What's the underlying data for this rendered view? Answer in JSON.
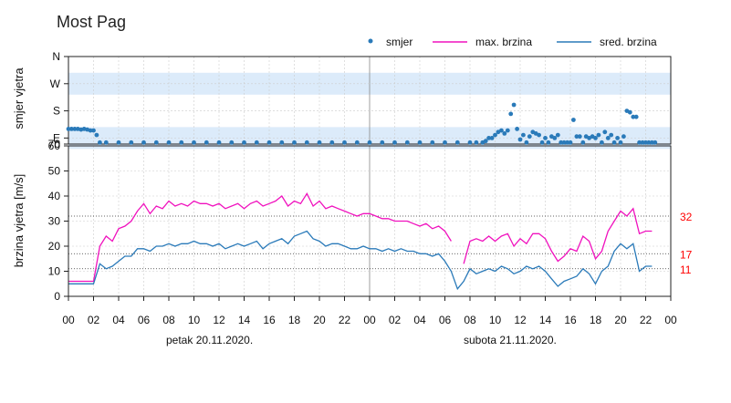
{
  "title": "Most Pag",
  "colors": {
    "direction": "#2a7ab9",
    "max": "#f012be",
    "avg": "#2a7ab9",
    "ref": "#ff0000",
    "band": "#dcebfa"
  },
  "legend": {
    "direction": "smjer",
    "max": "max. brzina",
    "avg": "sred. brzina"
  },
  "top_panel": {
    "ylabel": "smjer vjetra",
    "yticks": [
      "N",
      "W",
      "S",
      "E",
      "70"
    ]
  },
  "bottom_panel": {
    "ylabel": "brzina vjetra [m/s]",
    "yticks": [
      "0",
      "10",
      "20",
      "30",
      "40",
      "50",
      "60"
    ],
    "ref_lines": [
      {
        "value": 32,
        "label": "32"
      },
      {
        "value": 17,
        "label": "17"
      },
      {
        "value": 11,
        "label": "11"
      }
    ]
  },
  "x_axis": {
    "ticks": [
      "00",
      "02",
      "04",
      "06",
      "08",
      "10",
      "12",
      "14",
      "16",
      "18",
      "20",
      "22",
      "00",
      "02",
      "04",
      "06",
      "08",
      "10",
      "12",
      "14",
      "16",
      "18",
      "20",
      "22",
      "00"
    ],
    "days": [
      "petak  20.11.2020.",
      "subota  21.11.2020."
    ]
  },
  "chart_data": [
    {
      "type": "scatter",
      "name": "smjer",
      "ylabel": "smjer vjetra",
      "ytick_labels": [
        "N",
        "W",
        "S",
        "E",
        "70"
      ],
      "note": "wind direction in degrees (E=90, S=180, W=270, N=360, bottom=70)",
      "x": [
        0,
        0.25,
        0.5,
        0.75,
        1,
        1.25,
        1.5,
        1.75,
        2,
        2.25,
        2.5,
        3,
        4,
        5,
        6,
        7,
        8,
        9,
        10,
        11,
        12,
        13,
        14,
        15,
        16,
        17,
        18,
        19,
        20,
        21,
        22,
        23,
        24,
        25,
        26,
        27,
        28,
        29,
        30,
        31,
        32,
        32.5,
        33,
        33.25,
        33.5,
        33.75,
        34,
        34.25,
        34.5,
        34.75,
        35,
        35.25,
        35.5,
        35.75,
        36,
        36.25,
        36.5,
        36.75,
        37,
        37.25,
        37.5,
        37.75,
        38,
        38.25,
        38.5,
        38.75,
        39,
        39.25,
        39.5,
        39.75,
        40,
        40.25,
        40.5,
        40.75,
        41,
        41.25,
        41.5,
        41.75,
        42,
        42.25,
        42.5,
        42.75,
        43,
        43.25,
        43.5,
        43.75,
        44,
        44.25,
        44.5,
        44.75,
        45,
        45.25,
        45.5,
        45.75,
        46,
        46.25,
        46.5,
        46.75
      ],
      "y": [
        120,
        120,
        120,
        120,
        118,
        120,
        118,
        115,
        115,
        100,
        75,
        75,
        75,
        75,
        75,
        75,
        75,
        75,
        75,
        75,
        75,
        75,
        75,
        75,
        75,
        75,
        75,
        75,
        75,
        75,
        75,
        75,
        75,
        75,
        75,
        75,
        75,
        75,
        75,
        75,
        75,
        75,
        75,
        80,
        90,
        90,
        100,
        110,
        115,
        105,
        115,
        170,
        200,
        120,
        85,
        100,
        75,
        95,
        110,
        105,
        100,
        75,
        90,
        75,
        95,
        90,
        100,
        75,
        75,
        75,
        75,
        150,
        95,
        95,
        75,
        95,
        90,
        95,
        90,
        100,
        75,
        110,
        90,
        100,
        75,
        90,
        75,
        95,
        180,
        175,
        160,
        160,
        75,
        75,
        75,
        75,
        75,
        75
      ]
    },
    {
      "type": "line",
      "ylabel": "brzina vjetra [m/s]",
      "ylim": [
        0,
        60
      ],
      "xlabel": "",
      "series": [
        {
          "name": "max. brzina",
          "x": [
            0,
            1,
            2,
            2.5,
            3,
            3.5,
            4,
            4.5,
            5,
            5.5,
            6,
            6.5,
            7,
            7.5,
            8,
            8.5,
            9,
            9.5,
            10,
            10.5,
            11,
            11.5,
            12,
            12.5,
            13,
            13.5,
            14,
            14.5,
            15,
            15.5,
            16,
            16.5,
            17,
            17.5,
            18,
            18.5,
            19,
            19.5,
            20,
            20.5,
            21,
            21.5,
            22,
            22.5,
            23,
            23.5,
            24,
            24.5,
            25,
            25.5,
            26,
            26.5,
            27,
            27.5,
            28,
            28.5,
            29,
            29.5,
            30,
            30.5,
            31,
            31.5,
            32,
            32.5,
            33,
            33.5,
            34,
            34.5,
            35,
            35.5,
            36,
            36.5,
            37,
            37.5,
            38,
            38.5,
            39,
            39.5,
            40,
            40.5,
            41,
            41.5,
            42,
            42.5,
            43,
            43.5,
            44,
            44.5,
            45,
            45.5,
            46,
            46.5
          ],
          "values": [
            6,
            6,
            6,
            20,
            24,
            22,
            27,
            28,
            30,
            34,
            37,
            33,
            36,
            35,
            38,
            36,
            37,
            36,
            38,
            37,
            37,
            36,
            37,
            35,
            36,
            37,
            35,
            37,
            38,
            36,
            37,
            38,
            40,
            36,
            38,
            37,
            41,
            36,
            38,
            35,
            36,
            35,
            34,
            33,
            32,
            33,
            33,
            32,
            31,
            31,
            30,
            30,
            30,
            29,
            28,
            29,
            27,
            28,
            26,
            22,
            null,
            13,
            22,
            23,
            22,
            24,
            22,
            24,
            25,
            20,
            23,
            21,
            25,
            25,
            23,
            18,
            14,
            16,
            19,
            18,
            24,
            22,
            15,
            18,
            26,
            30,
            34,
            32,
            35,
            25,
            26,
            26
          ],
          "color": "#f012be"
        },
        {
          "name": "sred. brzina",
          "x": [
            0,
            1,
            2,
            2.5,
            3,
            3.5,
            4,
            4.5,
            5,
            5.5,
            6,
            6.5,
            7,
            7.5,
            8,
            8.5,
            9,
            9.5,
            10,
            10.5,
            11,
            11.5,
            12,
            12.5,
            13,
            13.5,
            14,
            14.5,
            15,
            15.5,
            16,
            16.5,
            17,
            17.5,
            18,
            18.5,
            19,
            19.5,
            20,
            20.5,
            21,
            21.5,
            22,
            22.5,
            23,
            23.5,
            24,
            24.5,
            25,
            25.5,
            26,
            26.5,
            27,
            27.5,
            28,
            28.5,
            29,
            29.5,
            30,
            30.5,
            31,
            31.5,
            32,
            32.5,
            33,
            33.5,
            34,
            34.5,
            35,
            35.5,
            36,
            36.5,
            37,
            37.5,
            38,
            38.5,
            39,
            39.5,
            40,
            40.5,
            41,
            41.5,
            42,
            42.5,
            43,
            43.5,
            44,
            44.5,
            45,
            45.5,
            46,
            46.5
          ],
          "values": [
            5,
            5,
            5,
            13,
            11,
            12,
            14,
            16,
            16,
            19,
            19,
            18,
            20,
            20,
            21,
            20,
            21,
            21,
            22,
            21,
            21,
            20,
            21,
            19,
            20,
            21,
            20,
            21,
            22,
            19,
            21,
            22,
            23,
            21,
            24,
            25,
            26,
            23,
            22,
            20,
            21,
            21,
            20,
            19,
            19,
            20,
            19,
            19,
            18,
            19,
            18,
            19,
            18,
            18,
            17,
            17,
            16,
            17,
            14,
            10,
            3,
            6,
            11,
            9,
            10,
            11,
            10,
            12,
            11,
            9,
            10,
            12,
            11,
            12,
            10,
            7,
            4,
            6,
            7,
            8,
            11,
            9,
            5,
            10,
            12,
            18,
            21,
            19,
            21,
            10,
            12,
            12
          ],
          "color": "#2a7ab9"
        }
      ]
    }
  ]
}
